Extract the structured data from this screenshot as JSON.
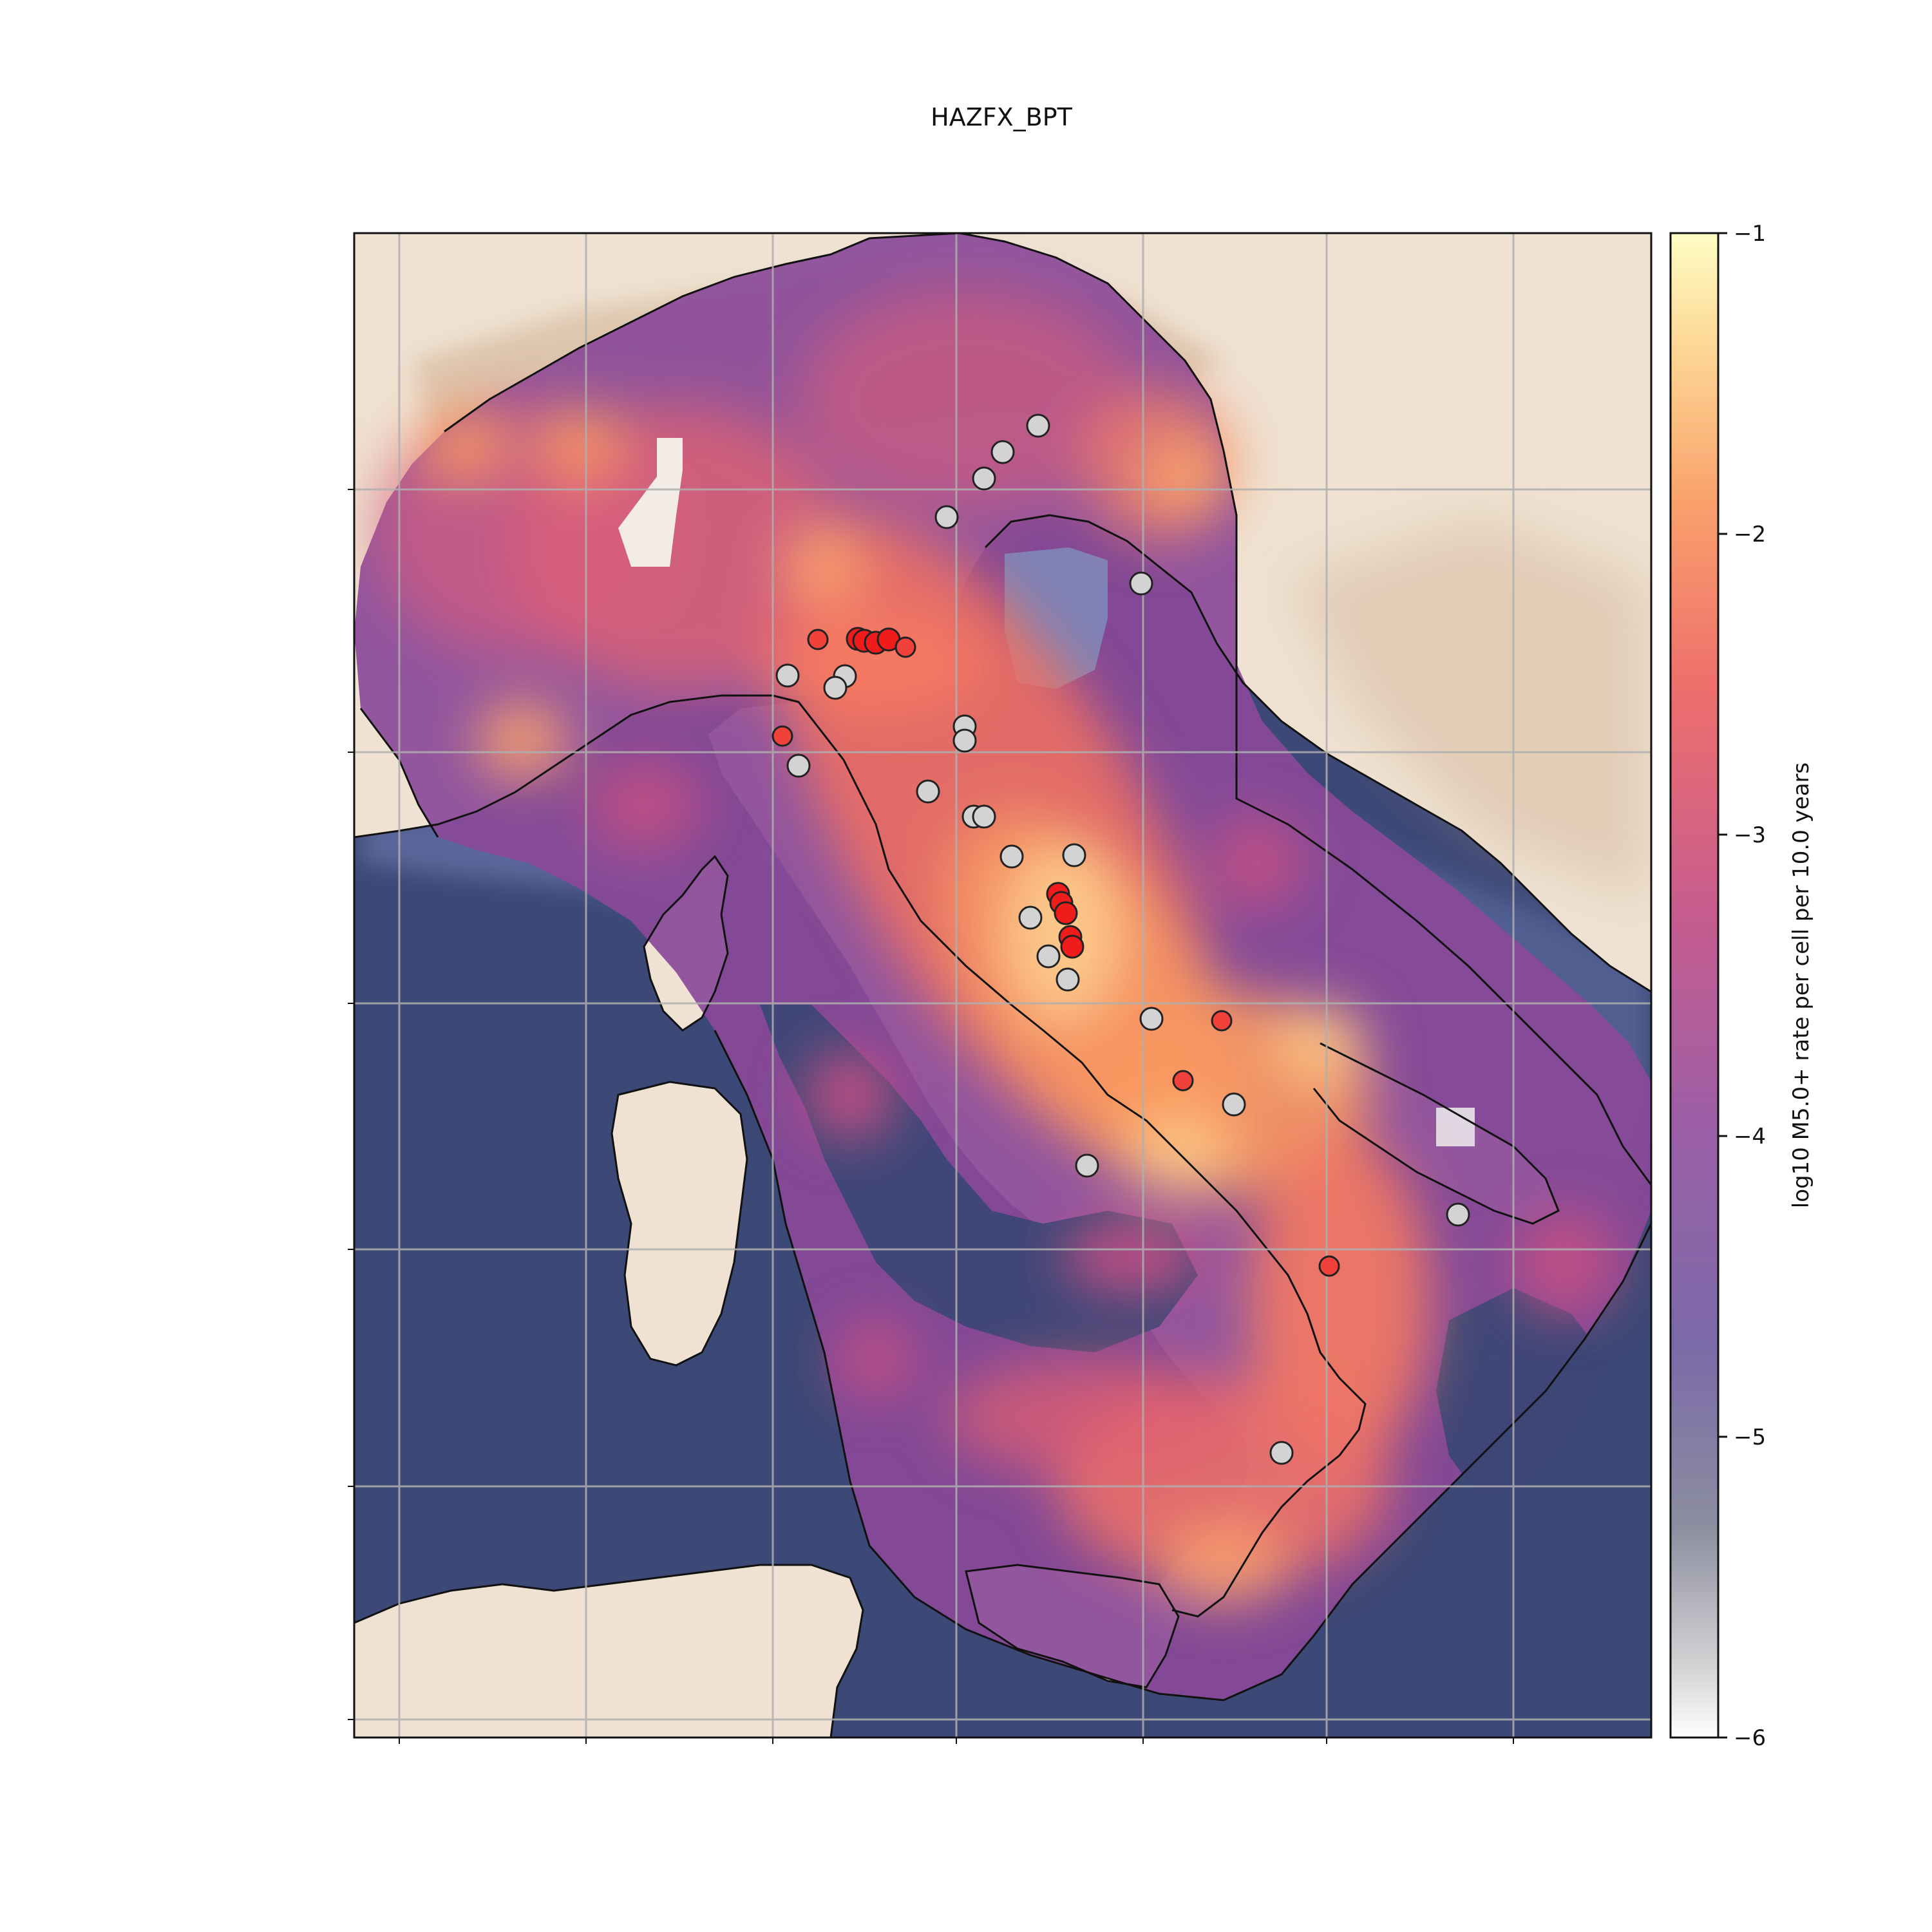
{
  "title": "HAZFX_BPT",
  "colorbar": {
    "label": "log10 M5.0+ rate per cell per 10.0 years",
    "ticks": [
      "−1",
      "−2",
      "−3",
      "−4",
      "−5",
      "−6"
    ],
    "range": [
      -6,
      -1
    ],
    "colormap": "magma-like (pale yellow → orange → red → purple → gray)"
  },
  "map_settings": {
    "grid": true,
    "tick_labels_visible": false,
    "ocean_color": "#3c4876",
    "land_color": "#efe2d2",
    "event_marker_colors": {
      "observed_red": "#f01c1c",
      "observed_gray": "#d3d3d3"
    }
  }
}
